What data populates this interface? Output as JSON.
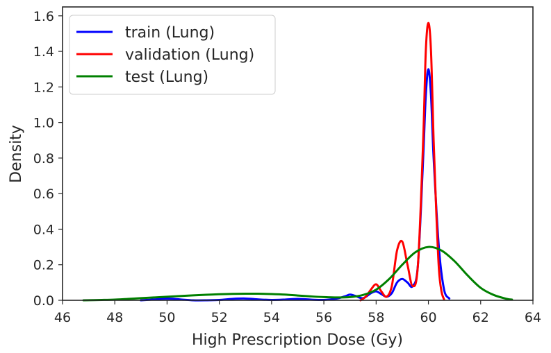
{
  "chart_data": {
    "type": "line",
    "title": "",
    "xlabel": "High Prescription Dose (Gy)",
    "ylabel": "Density",
    "xlim": [
      46,
      64
    ],
    "ylim": [
      0,
      1.65
    ],
    "xticks": [
      46,
      48,
      50,
      52,
      54,
      56,
      58,
      60,
      62,
      64
    ],
    "yticks": [
      0.0,
      0.2,
      0.4,
      0.6,
      0.8,
      1.0,
      1.2,
      1.4,
      1.6
    ],
    "grid": false,
    "legend_position": "top-left",
    "series": [
      {
        "name": "train (Lung)",
        "color": "#0000ff",
        "x": [
          49.0,
          49.5,
          50.0,
          50.5,
          51.0,
          51.5,
          52.0,
          52.5,
          53.0,
          53.5,
          54.0,
          54.5,
          55.0,
          55.5,
          56.0,
          56.5,
          56.8,
          57.0,
          57.2,
          57.5,
          57.8,
          58.0,
          58.2,
          58.4,
          58.6,
          58.8,
          59.0,
          59.2,
          59.4,
          59.6,
          59.8,
          59.9,
          60.0,
          60.1,
          60.2,
          60.4,
          60.6,
          60.8
        ],
        "y": [
          0.0,
          0.005,
          0.01,
          0.005,
          0.0,
          0.0,
          0.002,
          0.008,
          0.01,
          0.005,
          0.002,
          0.004,
          0.008,
          0.004,
          0.002,
          0.01,
          0.022,
          0.032,
          0.025,
          0.012,
          0.04,
          0.05,
          0.035,
          0.02,
          0.04,
          0.1,
          0.12,
          0.1,
          0.08,
          0.2,
          0.8,
          1.15,
          1.3,
          1.15,
          0.8,
          0.3,
          0.06,
          0.01
        ]
      },
      {
        "name": "validation (Lung)",
        "color": "#ff0000",
        "x": [
          57.4,
          57.6,
          57.8,
          58.0,
          58.2,
          58.4,
          58.6,
          58.8,
          59.0,
          59.2,
          59.4,
          59.6,
          59.8,
          59.9,
          60.0,
          60.1,
          60.2,
          60.3,
          60.4,
          60.5,
          60.6
        ],
        "y": [
          0.0,
          0.02,
          0.06,
          0.09,
          0.05,
          0.02,
          0.08,
          0.28,
          0.33,
          0.2,
          0.08,
          0.2,
          0.9,
          1.4,
          1.56,
          1.4,
          0.9,
          0.5,
          0.18,
          0.05,
          0.005
        ]
      },
      {
        "name": "test (Lung)",
        "color": "#008000",
        "x": [
          46.8,
          47.5,
          48.0,
          48.5,
          49.0,
          49.5,
          50.0,
          50.5,
          51.0,
          51.5,
          52.0,
          52.5,
          53.0,
          53.5,
          54.0,
          54.5,
          55.0,
          55.5,
          56.0,
          56.5,
          57.0,
          57.5,
          58.0,
          58.5,
          59.0,
          59.5,
          60.0,
          60.5,
          61.0,
          61.5,
          62.0,
          62.5,
          63.0,
          63.2
        ],
        "y": [
          0.0,
          0.002,
          0.004,
          0.008,
          0.012,
          0.016,
          0.02,
          0.024,
          0.028,
          0.031,
          0.034,
          0.036,
          0.037,
          0.037,
          0.035,
          0.032,
          0.027,
          0.022,
          0.018,
          0.016,
          0.018,
          0.03,
          0.06,
          0.12,
          0.2,
          0.27,
          0.3,
          0.28,
          0.22,
          0.14,
          0.07,
          0.03,
          0.008,
          0.004
        ]
      }
    ]
  }
}
